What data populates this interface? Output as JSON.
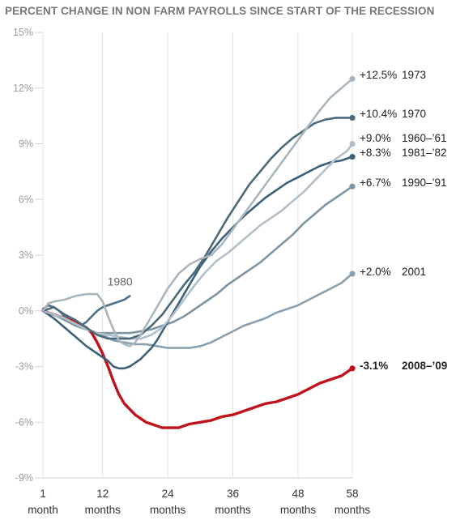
{
  "chart_data": {
    "type": "line",
    "title": "PERCENT CHANGE IN NON FARM PAYROLLS SINCE START OF THE RECESSION",
    "xlim": [
      1,
      58
    ],
    "ylim": [
      -9,
      15
    ],
    "y_ticks": [
      {
        "value": 15,
        "label": "15%"
      },
      {
        "value": 12,
        "label": "12%"
      },
      {
        "value": 9,
        "label": "9%"
      },
      {
        "value": 6,
        "label": "6%"
      },
      {
        "value": 3,
        "label": "3%"
      },
      {
        "value": 0,
        "label": "0%"
      },
      {
        "value": -3,
        "label": "-3%"
      },
      {
        "value": -6,
        "label": "-6%"
      },
      {
        "value": -9,
        "label": "-9%"
      }
    ],
    "x_ticks": [
      {
        "value": 1,
        "num": "1",
        "unit": "month"
      },
      {
        "value": 12,
        "num": "12",
        "unit": "months"
      },
      {
        "value": 24,
        "num": "24",
        "unit": "months"
      },
      {
        "value": 36,
        "num": "36",
        "unit": "months"
      },
      {
        "value": 48,
        "num": "48",
        "unit": "months"
      },
      {
        "value": 58,
        "num": "58",
        "unit": "months"
      }
    ],
    "grid": "vertical",
    "series": [
      {
        "name": "1980",
        "end_label": "",
        "color": "#4d7186",
        "end_marker": false,
        "inline_label": "1980",
        "points": [
          [
            1,
            0.1
          ],
          [
            2,
            0.3
          ],
          [
            3,
            0.2
          ],
          [
            4,
            0
          ],
          [
            5,
            -0.3
          ],
          [
            6,
            -0.5
          ],
          [
            7,
            -0.5
          ],
          [
            8,
            -0.8
          ],
          [
            9,
            -0.6
          ],
          [
            10,
            -0.3
          ],
          [
            11,
            0
          ],
          [
            12,
            0.2
          ],
          [
            13,
            0.3
          ],
          [
            14,
            0.4
          ],
          [
            15,
            0.5
          ],
          [
            16,
            0.6
          ],
          [
            17,
            0.8
          ]
        ]
      },
      {
        "name": "2001",
        "end_label": "+2.0%",
        "color": "#8aa0b0",
        "end_marker": true,
        "points": [
          [
            1,
            0
          ],
          [
            2,
            -0.1
          ],
          [
            4,
            -0.3
          ],
          [
            6,
            -0.5
          ],
          [
            8,
            -0.9
          ],
          [
            10,
            -1.1
          ],
          [
            12,
            -1.3
          ],
          [
            14,
            -1.6
          ],
          [
            16,
            -1.7
          ],
          [
            18,
            -1.8
          ],
          [
            20,
            -1.8
          ],
          [
            22,
            -1.9
          ],
          [
            24,
            -2.0
          ],
          [
            26,
            -2.0
          ],
          [
            28,
            -2.0
          ],
          [
            30,
            -1.9
          ],
          [
            32,
            -1.7
          ],
          [
            34,
            -1.4
          ],
          [
            36,
            -1.1
          ],
          [
            38,
            -0.8
          ],
          [
            40,
            -0.6
          ],
          [
            42,
            -0.4
          ],
          [
            44,
            -0.1
          ],
          [
            46,
            0.1
          ],
          [
            48,
            0.3
          ],
          [
            50,
            0.6
          ],
          [
            52,
            0.9
          ],
          [
            54,
            1.2
          ],
          [
            56,
            1.5
          ],
          [
            58,
            2.0
          ]
        ]
      },
      {
        "name": "2008–’09",
        "end_label": "-3.1%",
        "color": "#c0121a",
        "end_marker": true,
        "points": [
          [
            1,
            0
          ],
          [
            3,
            -0.2
          ],
          [
            5,
            -0.4
          ],
          [
            7,
            -0.6
          ],
          [
            9,
            -0.9
          ],
          [
            10,
            -1.2
          ],
          [
            11,
            -1.7
          ],
          [
            12,
            -2.3
          ],
          [
            13,
            -3.0
          ],
          [
            14,
            -3.8
          ],
          [
            15,
            -4.5
          ],
          [
            16,
            -5.0
          ],
          [
            17,
            -5.3
          ],
          [
            18,
            -5.6
          ],
          [
            19,
            -5.8
          ],
          [
            20,
            -6.0
          ],
          [
            21,
            -6.1
          ],
          [
            22,
            -6.2
          ],
          [
            23,
            -6.3
          ],
          [
            24,
            -6.3
          ],
          [
            25,
            -6.3
          ],
          [
            26,
            -6.3
          ],
          [
            27,
            -6.2
          ],
          [
            28,
            -6.1
          ],
          [
            30,
            -6.0
          ],
          [
            32,
            -5.9
          ],
          [
            34,
            -5.7
          ],
          [
            36,
            -5.6
          ],
          [
            38,
            -5.4
          ],
          [
            40,
            -5.2
          ],
          [
            42,
            -5.0
          ],
          [
            44,
            -4.9
          ],
          [
            46,
            -4.7
          ],
          [
            48,
            -4.5
          ],
          [
            50,
            -4.2
          ],
          [
            52,
            -3.9
          ],
          [
            54,
            -3.7
          ],
          [
            56,
            -3.5
          ],
          [
            58,
            -3.1
          ]
        ]
      },
      {
        "name": "1990–’91",
        "end_label": "+6.7%",
        "color": "#7e94a2",
        "end_marker": true,
        "points": [
          [
            1,
            0
          ],
          [
            3,
            -0.2
          ],
          [
            5,
            -0.5
          ],
          [
            7,
            -0.8
          ],
          [
            9,
            -1.0
          ],
          [
            11,
            -1.2
          ],
          [
            13,
            -1.2
          ],
          [
            15,
            -1.2
          ],
          [
            17,
            -1.2
          ],
          [
            19,
            -1.1
          ],
          [
            21,
            -1.0
          ],
          [
            23,
            -0.8
          ],
          [
            25,
            -0.6
          ],
          [
            27,
            -0.3
          ],
          [
            29,
            0.1
          ],
          [
            31,
            0.5
          ],
          [
            33,
            0.9
          ],
          [
            35,
            1.4
          ],
          [
            37,
            1.8
          ],
          [
            39,
            2.2
          ],
          [
            41,
            2.6
          ],
          [
            43,
            3.1
          ],
          [
            45,
            3.6
          ],
          [
            47,
            4.1
          ],
          [
            49,
            4.7
          ],
          [
            51,
            5.2
          ],
          [
            53,
            5.7
          ],
          [
            55,
            6.1
          ],
          [
            57,
            6.5
          ],
          [
            58,
            6.7
          ]
        ]
      },
      {
        "name": "1981–’82",
        "end_label": "+8.3%",
        "color": "#3c6076",
        "end_marker": true,
        "points": [
          [
            1,
            0
          ],
          [
            3,
            -0.4
          ],
          [
            5,
            -0.9
          ],
          [
            7,
            -1.4
          ],
          [
            9,
            -1.9
          ],
          [
            11,
            -2.3
          ],
          [
            13,
            -2.7
          ],
          [
            14,
            -3.0
          ],
          [
            15,
            -3.1
          ],
          [
            16,
            -3.1
          ],
          [
            17,
            -3.0
          ],
          [
            18,
            -2.8
          ],
          [
            19,
            -2.6
          ],
          [
            20,
            -2.3
          ],
          [
            21,
            -2.0
          ],
          [
            22,
            -1.6
          ],
          [
            23,
            -1.1
          ],
          [
            24,
            -0.6
          ],
          [
            25,
            -0.1
          ],
          [
            26,
            0.4
          ],
          [
            27,
            0.9
          ],
          [
            28,
            1.4
          ],
          [
            29,
            1.9
          ],
          [
            30,
            2.4
          ],
          [
            32,
            3.2
          ],
          [
            34,
            3.9
          ],
          [
            36,
            4.5
          ],
          [
            38,
            5.1
          ],
          [
            40,
            5.6
          ],
          [
            42,
            6.1
          ],
          [
            44,
            6.5
          ],
          [
            46,
            6.9
          ],
          [
            48,
            7.2
          ],
          [
            50,
            7.5
          ],
          [
            52,
            7.8
          ],
          [
            54,
            8.0
          ],
          [
            56,
            8.1
          ],
          [
            58,
            8.3
          ]
        ]
      },
      {
        "name": "1960–’61",
        "end_label": "+9.0%",
        "color": "#b0bfca",
        "end_marker": true,
        "points": [
          [
            1,
            0
          ],
          [
            3,
            -0.2
          ],
          [
            5,
            -0.4
          ],
          [
            7,
            -0.7
          ],
          [
            9,
            -1.0
          ],
          [
            11,
            -1.2
          ],
          [
            13,
            -1.3
          ],
          [
            15,
            -1.4
          ],
          [
            17,
            -1.5
          ],
          [
            19,
            -1.5
          ],
          [
            21,
            -1.3
          ],
          [
            23,
            -0.9
          ],
          [
            25,
            -0.2
          ],
          [
            27,
            0.6
          ],
          [
            29,
            1.4
          ],
          [
            31,
            2.1
          ],
          [
            33,
            2.7
          ],
          [
            35,
            3.1
          ],
          [
            37,
            3.6
          ],
          [
            39,
            4.1
          ],
          [
            41,
            4.6
          ],
          [
            43,
            5.0
          ],
          [
            45,
            5.4
          ],
          [
            47,
            5.9
          ],
          [
            49,
            6.4
          ],
          [
            51,
            7.0
          ],
          [
            53,
            7.6
          ],
          [
            55,
            8.2
          ],
          [
            57,
            8.6
          ],
          [
            58,
            9.0
          ]
        ]
      },
      {
        "name": "1970",
        "end_label": "+10.4%",
        "color": "#4a6a7c",
        "end_marker": true,
        "points": [
          [
            1,
            0
          ],
          [
            3,
            0.2
          ],
          [
            5,
            -0.2
          ],
          [
            7,
            -0.5
          ],
          [
            9,
            -0.9
          ],
          [
            11,
            -1.3
          ],
          [
            13,
            -1.5
          ],
          [
            15,
            -1.5
          ],
          [
            17,
            -1.5
          ],
          [
            19,
            -1.3
          ],
          [
            21,
            -0.8
          ],
          [
            23,
            -0.2
          ],
          [
            25,
            0.6
          ],
          [
            27,
            1.4
          ],
          [
            29,
            2.1
          ],
          [
            31,
            3.0
          ],
          [
            33,
            4.0
          ],
          [
            35,
            5.0
          ],
          [
            37,
            5.9
          ],
          [
            39,
            6.8
          ],
          [
            41,
            7.5
          ],
          [
            43,
            8.2
          ],
          [
            45,
            8.8
          ],
          [
            47,
            9.3
          ],
          [
            49,
            9.7
          ],
          [
            51,
            10.1
          ],
          [
            53,
            10.3
          ],
          [
            55,
            10.4
          ],
          [
            58,
            10.4
          ]
        ]
      },
      {
        "name": "1973",
        "end_label": "+12.5%",
        "color": "#a9b6be",
        "end_marker": true,
        "points": [
          [
            1,
            0
          ],
          [
            2,
            0.4
          ],
          [
            3,
            0.5
          ],
          [
            5,
            0.6
          ],
          [
            7,
            0.8
          ],
          [
            9,
            0.9
          ],
          [
            11,
            0.9
          ],
          [
            12,
            0.5
          ],
          [
            13,
            -0.3
          ],
          [
            14,
            -1.0
          ],
          [
            15,
            -1.6
          ],
          [
            16,
            -1.8
          ],
          [
            17,
            -1.9
          ],
          [
            18,
            -1.7
          ],
          [
            19,
            -1.3
          ],
          [
            20,
            -0.8
          ],
          [
            22,
            0.2
          ],
          [
            24,
            1.2
          ],
          [
            26,
            2.0
          ],
          [
            28,
            2.5
          ],
          [
            30,
            2.8
          ],
          [
            32,
            3.0
          ],
          [
            34,
            3.6
          ],
          [
            36,
            4.4
          ],
          [
            38,
            5.2
          ],
          [
            40,
            6.0
          ],
          [
            42,
            6.8
          ],
          [
            44,
            7.6
          ],
          [
            46,
            8.4
          ],
          [
            48,
            9.2
          ],
          [
            50,
            10.0
          ],
          [
            52,
            10.8
          ],
          [
            54,
            11.5
          ],
          [
            56,
            12.0
          ],
          [
            58,
            12.5
          ]
        ]
      }
    ]
  }
}
